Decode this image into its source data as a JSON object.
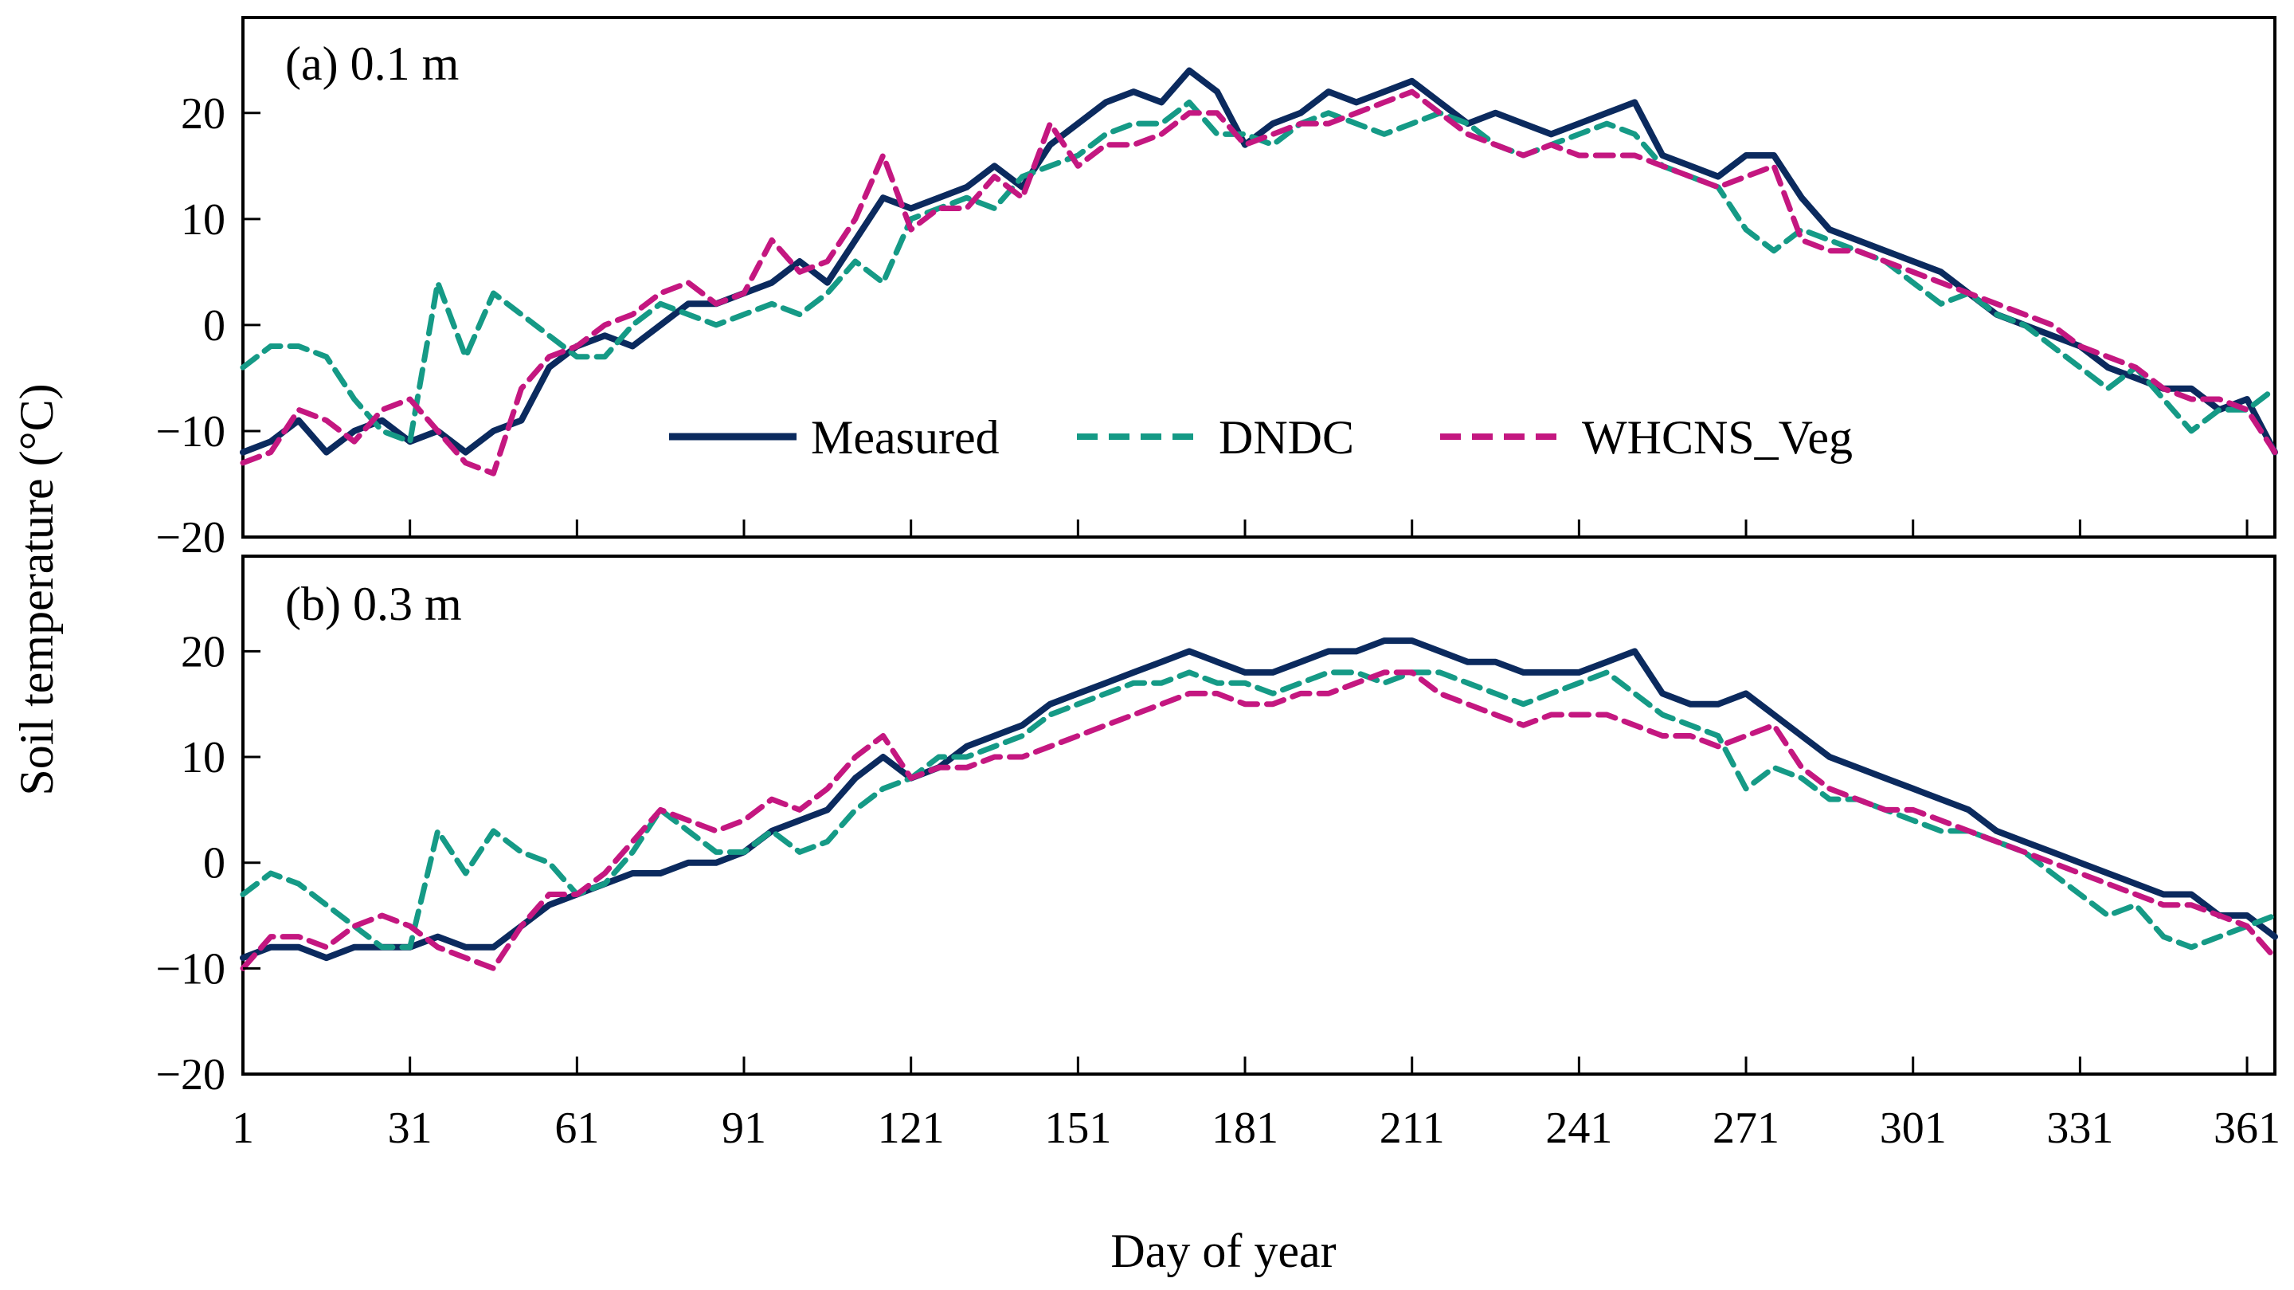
{
  "chart_data": {
    "type": "line",
    "xlabel": "Day of year",
    "ylabel": "Soil temperature (°C)",
    "xlim": [
      1,
      366
    ],
    "ylim": [
      -20,
      29
    ],
    "xticks": [
      1,
      31,
      61,
      91,
      121,
      151,
      181,
      211,
      241,
      271,
      301,
      331,
      361
    ],
    "yticks": [
      -20,
      -10,
      0,
      10,
      20
    ],
    "legend": {
      "placement": "center-bottom of panel (a)",
      "entries": [
        {
          "name": "Measured",
          "style": "solid"
        },
        {
          "name": "DNDC",
          "style": "dashed"
        },
        {
          "name": "WHCNS_Veg",
          "style": "dashed"
        }
      ]
    },
    "colors": {
      "Measured": "#0b2a5e",
      "DNDC": "#159a86",
      "WHCNS_Veg": "#c41780"
    },
    "panels": [
      {
        "label": "(a) 0.1 m",
        "series": [
          {
            "name": "Measured",
            "x": [
              1,
              6,
              11,
              16,
              21,
              26,
              31,
              36,
              41,
              46,
              51,
              56,
              61,
              66,
              71,
              76,
              81,
              86,
              91,
              96,
              101,
              106,
              111,
              116,
              121,
              126,
              131,
              136,
              141,
              146,
              151,
              156,
              161,
              166,
              171,
              176,
              181,
              186,
              191,
              196,
              201,
              206,
              211,
              216,
              221,
              226,
              231,
              236,
              241,
              246,
              251,
              256,
              261,
              266,
              271,
              276,
              281,
              286,
              291,
              296,
              301,
              306,
              311,
              316,
              321,
              326,
              331,
              336,
              341,
              346,
              351,
              356,
              361,
              366
            ],
            "y": [
              -12,
              -11,
              -9,
              -12,
              -10,
              -9,
              -11,
              -10,
              -12,
              -10,
              -9,
              -4,
              -2,
              -1,
              -2,
              0,
              2,
              2,
              3,
              4,
              6,
              4,
              8,
              12,
              11,
              12,
              13,
              15,
              13,
              17,
              19,
              21,
              22,
              21,
              24,
              22,
              17,
              19,
              20,
              22,
              21,
              22,
              23,
              21,
              19,
              20,
              19,
              18,
              19,
              20,
              21,
              16,
              15,
              14,
              16,
              16,
              12,
              9,
              8,
              7,
              6,
              5,
              3,
              1,
              0,
              -1,
              -2,
              -4,
              -5,
              -6,
              -6,
              -8,
              -7,
              -12
            ]
          },
          {
            "name": "DNDC",
            "x": [
              1,
              6,
              11,
              16,
              21,
              26,
              31,
              36,
              41,
              46,
              51,
              56,
              61,
              66,
              71,
              76,
              81,
              86,
              91,
              96,
              101,
              106,
              111,
              116,
              121,
              126,
              131,
              136,
              141,
              146,
              151,
              156,
              161,
              166,
              171,
              176,
              181,
              186,
              191,
              196,
              201,
              206,
              211,
              216,
              221,
              226,
              231,
              236,
              241,
              246,
              251,
              256,
              261,
              266,
              271,
              276,
              281,
              286,
              291,
              296,
              301,
              306,
              311,
              316,
              321,
              326,
              331,
              336,
              341,
              346,
              351,
              356,
              361,
              366
            ],
            "y": [
              -4,
              -2,
              -2,
              -3,
              -7,
              -10,
              -11,
              4,
              -3,
              3,
              1,
              -1,
              -3,
              -3,
              0,
              2,
              1,
              0,
              1,
              2,
              1,
              3,
              6,
              4,
              10,
              11,
              12,
              11,
              14,
              15,
              16,
              18,
              19,
              19,
              21,
              18,
              18,
              17,
              19,
              20,
              19,
              18,
              19,
              20,
              19,
              17,
              16,
              17,
              18,
              19,
              18,
              15,
              14,
              13,
              9,
              7,
              9,
              8,
              7,
              6,
              4,
              2,
              3,
              1,
              0,
              -2,
              -4,
              -6,
              -4,
              -7,
              -10,
              -8,
              -8,
              -6
            ]
          },
          {
            "name": "WHCNS_Veg",
            "x": [
              1,
              6,
              11,
              16,
              21,
              26,
              31,
              36,
              41,
              46,
              51,
              56,
              61,
              66,
              71,
              76,
              81,
              86,
              91,
              96,
              101,
              106,
              111,
              116,
              121,
              126,
              131,
              136,
              141,
              146,
              151,
              156,
              161,
              166,
              171,
              176,
              181,
              186,
              191,
              196,
              201,
              206,
              211,
              216,
              221,
              226,
              231,
              236,
              241,
              246,
              251,
              256,
              261,
              266,
              271,
              276,
              281,
              286,
              291,
              296,
              301,
              306,
              311,
              316,
              321,
              326,
              331,
              336,
              341,
              346,
              351,
              356,
              361,
              366
            ],
            "y": [
              -13,
              -12,
              -8,
              -9,
              -11,
              -8,
              -7,
              -10,
              -13,
              -14,
              -6,
              -3,
              -2,
              0,
              1,
              3,
              4,
              2,
              3,
              8,
              5,
              6,
              10,
              16,
              9,
              11,
              11,
              14,
              12,
              19,
              15,
              17,
              17,
              18,
              20,
              20,
              17,
              18,
              19,
              19,
              20,
              21,
              22,
              20,
              18,
              17,
              16,
              17,
              16,
              16,
              16,
              15,
              14,
              13,
              14,
              15,
              8,
              7,
              7,
              6,
              5,
              4,
              3,
              2,
              1,
              0,
              -2,
              -3,
              -4,
              -6,
              -7,
              -7,
              -8,
              -12
            ]
          }
        ]
      },
      {
        "label": "(b) 0.3 m",
        "series": [
          {
            "name": "Measured",
            "x": [
              1,
              6,
              11,
              16,
              21,
              26,
              31,
              36,
              41,
              46,
              51,
              56,
              61,
              66,
              71,
              76,
              81,
              86,
              91,
              96,
              101,
              106,
              111,
              116,
              121,
              126,
              131,
              136,
              141,
              146,
              151,
              156,
              161,
              166,
              171,
              176,
              181,
              186,
              191,
              196,
              201,
              206,
              211,
              216,
              221,
              226,
              231,
              236,
              241,
              246,
              251,
              256,
              261,
              266,
              271,
              276,
              281,
              286,
              291,
              296,
              301,
              306,
              311,
              316,
              321,
              326,
              331,
              336,
              341,
              346,
              351,
              356,
              361,
              366
            ],
            "y": [
              -9,
              -8,
              -8,
              -9,
              -8,
              -8,
              -8,
              -7,
              -8,
              -8,
              -6,
              -4,
              -3,
              -2,
              -1,
              -1,
              0,
              0,
              1,
              3,
              4,
              5,
              8,
              10,
              8,
              9,
              11,
              12,
              13,
              15,
              16,
              17,
              18,
              19,
              20,
              19,
              18,
              18,
              19,
              20,
              20,
              21,
              21,
              20,
              19,
              19,
              18,
              18,
              18,
              19,
              20,
              16,
              15,
              15,
              16,
              14,
              12,
              10,
              9,
              8,
              7,
              6,
              5,
              3,
              2,
              1,
              0,
              -1,
              -2,
              -3,
              -3,
              -5,
              -5,
              -7
            ]
          },
          {
            "name": "DNDC",
            "x": [
              1,
              6,
              11,
              16,
              21,
              26,
              31,
              36,
              41,
              46,
              51,
              56,
              61,
              66,
              71,
              76,
              81,
              86,
              91,
              96,
              101,
              106,
              111,
              116,
              121,
              126,
              131,
              136,
              141,
              146,
              151,
              156,
              161,
              166,
              171,
              176,
              181,
              186,
              191,
              196,
              201,
              206,
              211,
              216,
              221,
              226,
              231,
              236,
              241,
              246,
              251,
              256,
              261,
              266,
              271,
              276,
              281,
              286,
              291,
              296,
              301,
              306,
              311,
              316,
              321,
              326,
              331,
              336,
              341,
              346,
              351,
              356,
              361,
              366
            ],
            "y": [
              -3,
              -1,
              -2,
              -4,
              -6,
              -8,
              -8,
              3,
              -1,
              3,
              1,
              0,
              -3,
              -2,
              1,
              5,
              3,
              1,
              1,
              3,
              1,
              2,
              5,
              7,
              8,
              10,
              10,
              11,
              12,
              14,
              15,
              16,
              17,
              17,
              18,
              17,
              17,
              16,
              17,
              18,
              18,
              17,
              18,
              18,
              17,
              16,
              15,
              16,
              17,
              18,
              16,
              14,
              13,
              12,
              7,
              9,
              8,
              6,
              6,
              5,
              4,
              3,
              3,
              2,
              1,
              -1,
              -3,
              -5,
              -4,
              -7,
              -8,
              -7,
              -6,
              -5
            ]
          },
          {
            "name": "WHCNS_Veg",
            "x": [
              1,
              6,
              11,
              16,
              21,
              26,
              31,
              36,
              41,
              46,
              51,
              56,
              61,
              66,
              71,
              76,
              81,
              86,
              91,
              96,
              101,
              106,
              111,
              116,
              121,
              126,
              131,
              136,
              141,
              146,
              151,
              156,
              161,
              166,
              171,
              176,
              181,
              186,
              191,
              196,
              201,
              206,
              211,
              216,
              221,
              226,
              231,
              236,
              241,
              246,
              251,
              256,
              261,
              266,
              271,
              276,
              281,
              286,
              291,
              296,
              301,
              306,
              311,
              316,
              321,
              326,
              331,
              336,
              341,
              346,
              351,
              356,
              361,
              366
            ],
            "y": [
              -10,
              -7,
              -7,
              -8,
              -6,
              -5,
              -6,
              -8,
              -9,
              -10,
              -6,
              -3,
              -3,
              -1,
              2,
              5,
              4,
              3,
              4,
              6,
              5,
              7,
              10,
              12,
              8,
              9,
              9,
              10,
              10,
              11,
              12,
              13,
              14,
              15,
              16,
              16,
              15,
              15,
              16,
              16,
              17,
              18,
              18,
              16,
              15,
              14,
              13,
              14,
              14,
              14,
              13,
              12,
              12,
              11,
              12,
              13,
              9,
              7,
              6,
              5,
              5,
              4,
              3,
              2,
              1,
              0,
              -1,
              -2,
              -3,
              -4,
              -4,
              -5,
              -6,
              -9
            ]
          }
        ]
      }
    ]
  }
}
